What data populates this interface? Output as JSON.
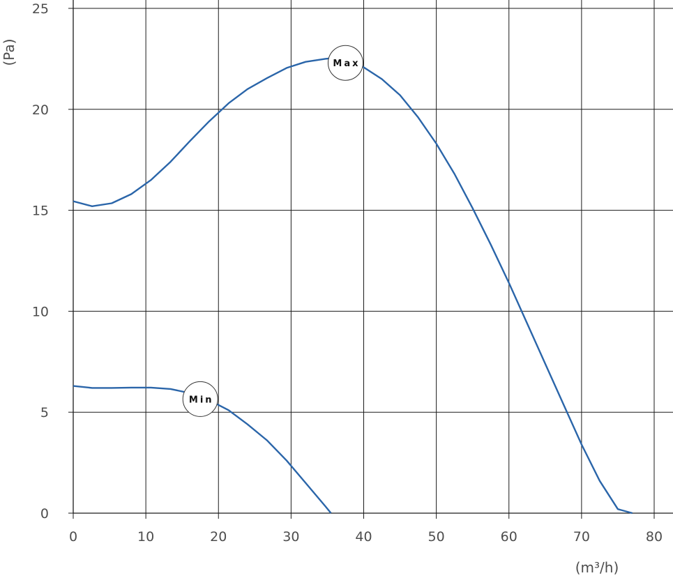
{
  "chart_data": {
    "type": "line",
    "xlabel": "(m³/h)",
    "ylabel": "(Pa)",
    "xlim": [
      0,
      80
    ],
    "ylim": [
      0,
      25
    ],
    "x_ticks": [
      0,
      10,
      20,
      30,
      40,
      50,
      60,
      70,
      80
    ],
    "y_ticks": [
      0,
      5,
      10,
      15,
      20,
      25
    ],
    "grid": true,
    "series_color": "#2a65a9",
    "series": [
      {
        "name": "Max",
        "label_at": [
          37.5,
          22.3
        ],
        "x": [
          0,
          2.6,
          5.3,
          8,
          10.7,
          13.4,
          16,
          18.7,
          21.4,
          24,
          26.7,
          29.4,
          32,
          34.7,
          36,
          39.5,
          42.5,
          45,
          47.5,
          50,
          52.5,
          55,
          57.5,
          60,
          62.5,
          65,
          67.5,
          70,
          72.5,
          75,
          77
        ],
        "y": [
          15.45,
          15.2,
          15.35,
          15.8,
          16.5,
          17.4,
          18.4,
          19.4,
          20.3,
          21.0,
          21.55,
          22.05,
          22.35,
          22.5,
          22.55,
          22.2,
          21.5,
          20.7,
          19.6,
          18.3,
          16.8,
          15.1,
          13.3,
          11.4,
          9.4,
          7.4,
          5.4,
          3.4,
          1.6,
          0.2,
          0
        ]
      },
      {
        "name": "Min",
        "label_at": [
          17.5,
          5.65
        ],
        "x": [
          0,
          2.6,
          5.3,
          8,
          10.7,
          13.4,
          16,
          18.7,
          21.4,
          24,
          26.7,
          29.4,
          32,
          34.7,
          35.5
        ],
        "y": [
          6.3,
          6.2,
          6.2,
          6.22,
          6.22,
          6.15,
          5.95,
          5.6,
          5.1,
          4.4,
          3.6,
          2.6,
          1.5,
          0.35,
          0
        ]
      }
    ]
  }
}
